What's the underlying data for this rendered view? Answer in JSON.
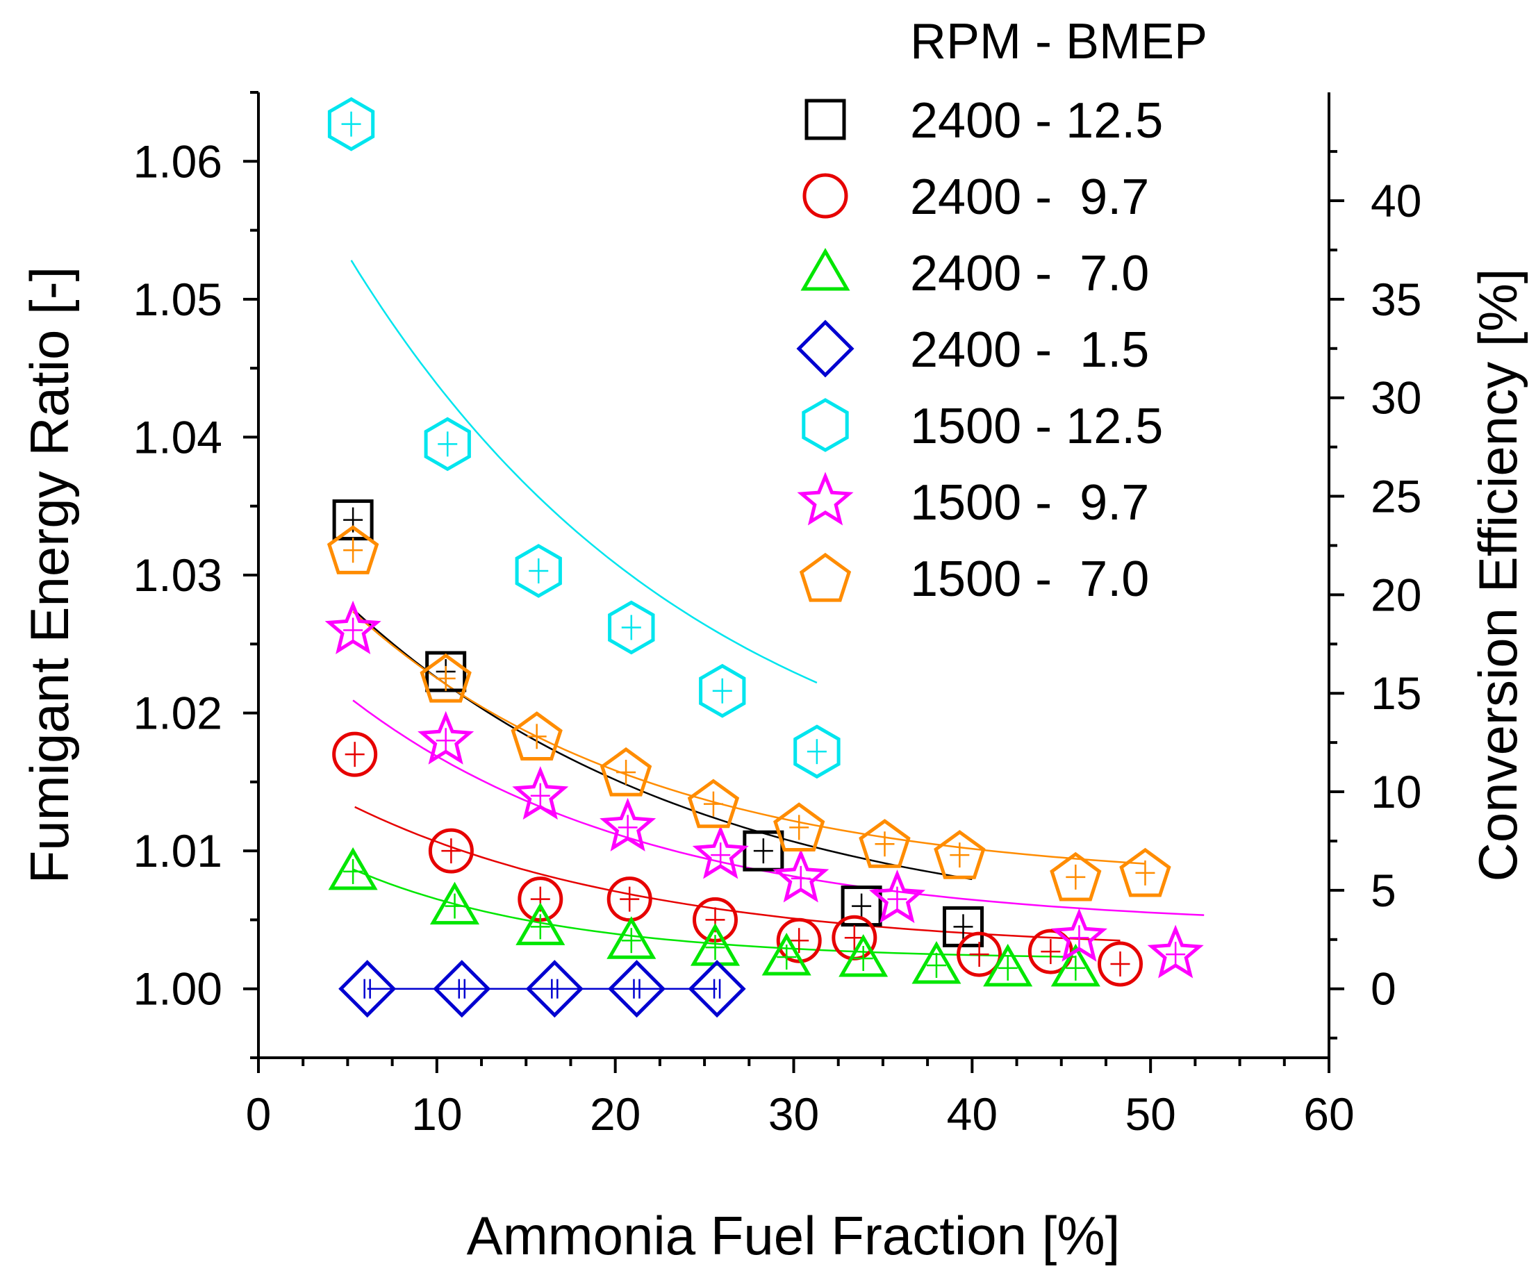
{
  "chart_data": {
    "type": "scatter",
    "title": "",
    "xlabel": "Ammonia Fuel Fraction [%]",
    "ylabel": "Fumigant Energy Ratio [-]",
    "y2label": "Conversion Efficiency [%]",
    "xlim": [
      0,
      60
    ],
    "ylim": [
      0.995,
      1.065
    ],
    "y2lim": [
      -3.5,
      45.5
    ],
    "xticks": [
      0,
      10,
      20,
      30,
      40,
      50,
      60
    ],
    "yticks": [
      1.0,
      1.01,
      1.02,
      1.03,
      1.04,
      1.05,
      1.06
    ],
    "ytick_labels": [
      "1.00",
      "1.01",
      "1.02",
      "1.03",
      "1.04",
      "1.05",
      "1.06"
    ],
    "y2ticks": [
      0,
      5,
      10,
      15,
      20,
      25,
      30,
      35,
      40
    ],
    "legend": {
      "title": "RPM - BMEP",
      "position": "top-right"
    },
    "series": [
      {
        "name": "2400 - 12.5",
        "marker": "square",
        "color": "#000000",
        "x": [
          5.3,
          10.5,
          28.3,
          33.8,
          39.5
        ],
        "y": [
          1.034,
          1.023,
          1.01,
          1.006,
          1.0045
        ],
        "fit_x": [
          5.3,
          40
        ],
        "fit_a": 0.00375,
        "fit_b": 0.05,
        "fit_c": 0.031
      },
      {
        "name": "2400 -  9.7",
        "marker": "circle",
        "color": "#e60000",
        "x": [
          5.4,
          10.8,
          15.8,
          20.8,
          25.6,
          30.3,
          33.4,
          40.4,
          44.4,
          48.3
        ],
        "y": [
          1.017,
          1.01,
          1.0065,
          1.0065,
          1.005,
          1.0035,
          1.0037,
          1.0025,
          1.0027,
          1.0018
        ],
        "fit_x": [
          5.4,
          48.3
        ],
        "fit_a": 0.0027,
        "fit_b": 0.06,
        "fit_c": 0.0145
      },
      {
        "name": "2400 -  7.0",
        "marker": "triangle",
        "color": "#00e600",
        "x": [
          5.3,
          11.0,
          15.8,
          20.9,
          25.6,
          29.6,
          33.9,
          38.0,
          42.0,
          45.8
        ],
        "y": [
          1.0085,
          1.006,
          1.0045,
          1.0035,
          1.003,
          1.0023,
          1.0022,
          1.0017,
          1.0015,
          1.0015
        ],
        "fit_x": [
          5.3,
          45.8
        ],
        "fit_a": 0.0021,
        "fit_b": 0.085,
        "fit_c": 0.0103
      },
      {
        "name": "2400 -  1.5",
        "marker": "diamond",
        "color": "#0000d0",
        "x": [
          6.1,
          11.4,
          16.6,
          21.2,
          25.7
        ],
        "y": [
          1.0,
          1.0,
          1.0,
          1.0,
          1.0
        ],
        "fit_x": [
          6.1,
          25.7
        ],
        "fit_a": 0.0,
        "fit_b": 0.0,
        "fit_c": 0.0
      },
      {
        "name": "1500 - 12.5",
        "marker": "hexagon",
        "color": "#00e5ee",
        "x": [
          5.2,
          10.6,
          15.7,
          20.9,
          26.0,
          31.3
        ],
        "y": [
          1.0627,
          1.0395,
          1.0303,
          1.0262,
          1.0216,
          1.0172
        ],
        "fit_x": [
          5.2,
          31.3
        ],
        "fit_a": 0.0108,
        "fit_b": 0.05,
        "fit_c": 0.0545
      },
      {
        "name": "1500 -  9.7",
        "marker": "star",
        "color": "#ff00ff",
        "x": [
          5.3,
          10.5,
          15.8,
          20.7,
          25.9,
          30.4,
          35.8,
          46.0,
          51.4
        ],
        "y": [
          1.026,
          1.018,
          1.014,
          1.0117,
          1.0097,
          1.008,
          1.0065,
          1.0037,
          1.0025
        ],
        "fit_x": [
          5.3,
          53.0
        ],
        "fit_a": 0.0044,
        "fit_b": 0.06,
        "fit_c": 0.0227
      },
      {
        "name": "1500 -  7.0",
        "marker": "pentagon",
        "color": "#ff8c00",
        "x": [
          5.3,
          10.5,
          15.6,
          20.6,
          25.5,
          30.3,
          35.1,
          39.3,
          45.8,
          49.7
        ],
        "y": [
          1.0318,
          1.0225,
          1.0183,
          1.0157,
          1.0134,
          1.0117,
          1.0105,
          1.0097,
          1.0081,
          1.0084
        ],
        "fit_x": [
          5.3,
          49.7
        ],
        "fit_a": 0.0077,
        "fit_b": 0.06,
        "fit_c": 0.027
      }
    ]
  }
}
